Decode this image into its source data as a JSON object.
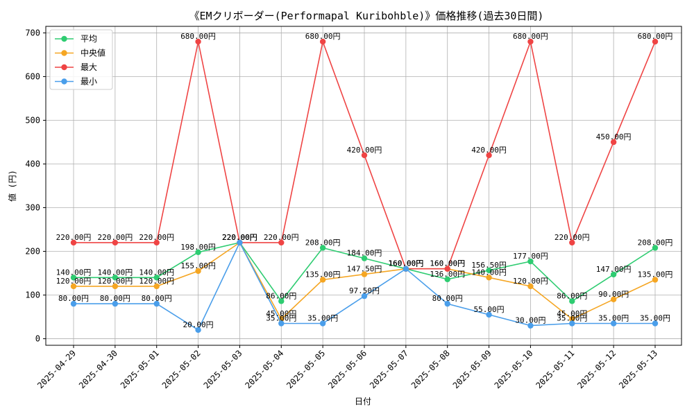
{
  "chart_data": {
    "type": "line",
    "title": "《EMクリボーダー(Performapal Kuribohble)》価格推移(過去30日間)",
    "xlabel": "日付",
    "ylabel": "値 (円)",
    "ylim": [
      -15,
      715
    ],
    "yticks": [
      0,
      100,
      200,
      300,
      400,
      500,
      600,
      700
    ],
    "grid": true,
    "legend_position": "top-left",
    "label_suffix": "円",
    "categories": [
      "2025-04-29",
      "2025-04-30",
      "2025-05-01",
      "2025-05-02",
      "2025-05-03",
      "2025-05-04",
      "2025-05-05",
      "2025-05-06",
      "2025-05-07",
      "2025-05-08",
      "2025-05-09",
      "2025-05-10",
      "2025-05-11",
      "2025-05-12",
      "2025-05-13"
    ],
    "series": [
      {
        "name": "平均",
        "color": "#2ecc71",
        "values": [
          140,
          140,
          140,
          198,
          220,
          86,
          208,
          184,
          160,
          136,
          156.5,
          177,
          86,
          147,
          208
        ]
      },
      {
        "name": "中央値",
        "color": "#f5a623",
        "values": [
          120,
          120,
          120,
          155,
          220,
          45,
          135,
          147.5,
          160,
          160,
          140,
          120,
          45,
          90,
          135
        ]
      },
      {
        "name": "最大",
        "color": "#ef4444",
        "values": [
          220,
          220,
          220,
          680,
          220,
          220,
          680,
          420,
          160,
          160,
          420,
          680,
          220,
          450,
          680
        ]
      },
      {
        "name": "最小",
        "color": "#4a9eea",
        "values": [
          80,
          80,
          80,
          20,
          220,
          35,
          35,
          97.5,
          160,
          80,
          55,
          30,
          35,
          35,
          35
        ]
      }
    ]
  }
}
